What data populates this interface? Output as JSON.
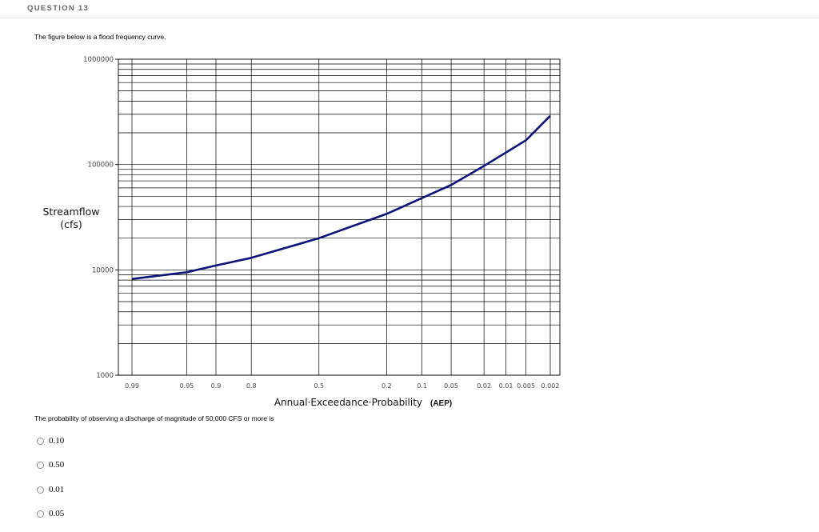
{
  "question": {
    "number_label": "QUESTION 13",
    "intro": "The figure below is a flood frequency curve.",
    "prompt": "The probability of observing a discharge of magnitude of 50,000 CFS or more is",
    "options": [
      {
        "label": "0.10"
      },
      {
        "label": "0.50"
      },
      {
        "label": "0.01"
      },
      {
        "label": "0.05"
      }
    ]
  },
  "colors": {
    "curve": "#0a147a",
    "grid": "#000000"
  },
  "chart_data": {
    "type": "line",
    "title": "",
    "ylabel_line1": "Streamflow",
    "ylabel_line2": "(cfs)",
    "xlabel": "Annual·Exceedance·Probability",
    "xlabel_suffix": "(AEP)",
    "y_scale": "log",
    "x_scale": "normal-probability",
    "ylim": [
      1000,
      1000000
    ],
    "y_ticks": [
      1000,
      10000,
      100000,
      1000000
    ],
    "y_tick_labels": [
      "1000",
      "10000",
      "100000",
      "1000000"
    ],
    "x_ticks": [
      0.99,
      0.95,
      0.9,
      0.8,
      0.5,
      0.2,
      0.1,
      0.05,
      0.02,
      0.01,
      0.005,
      0.002
    ],
    "x_tick_labels": [
      "0.99",
      "0.95",
      "0.9",
      "0.8",
      "0.5",
      "0.2",
      "0.1",
      "0.05",
      "0.02",
      "0.01",
      "0.005",
      "0.002"
    ],
    "grid": true,
    "series": [
      {
        "x": [
          0.99,
          0.95,
          0.9,
          0.8,
          0.5,
          0.2,
          0.1,
          0.05,
          0.02,
          0.01,
          0.005,
          0.002
        ],
        "y": [
          8200,
          9500,
          11000,
          13000,
          20000,
          34000,
          48000,
          64000,
          97000,
          130000,
          170000,
          290000
        ]
      }
    ]
  }
}
